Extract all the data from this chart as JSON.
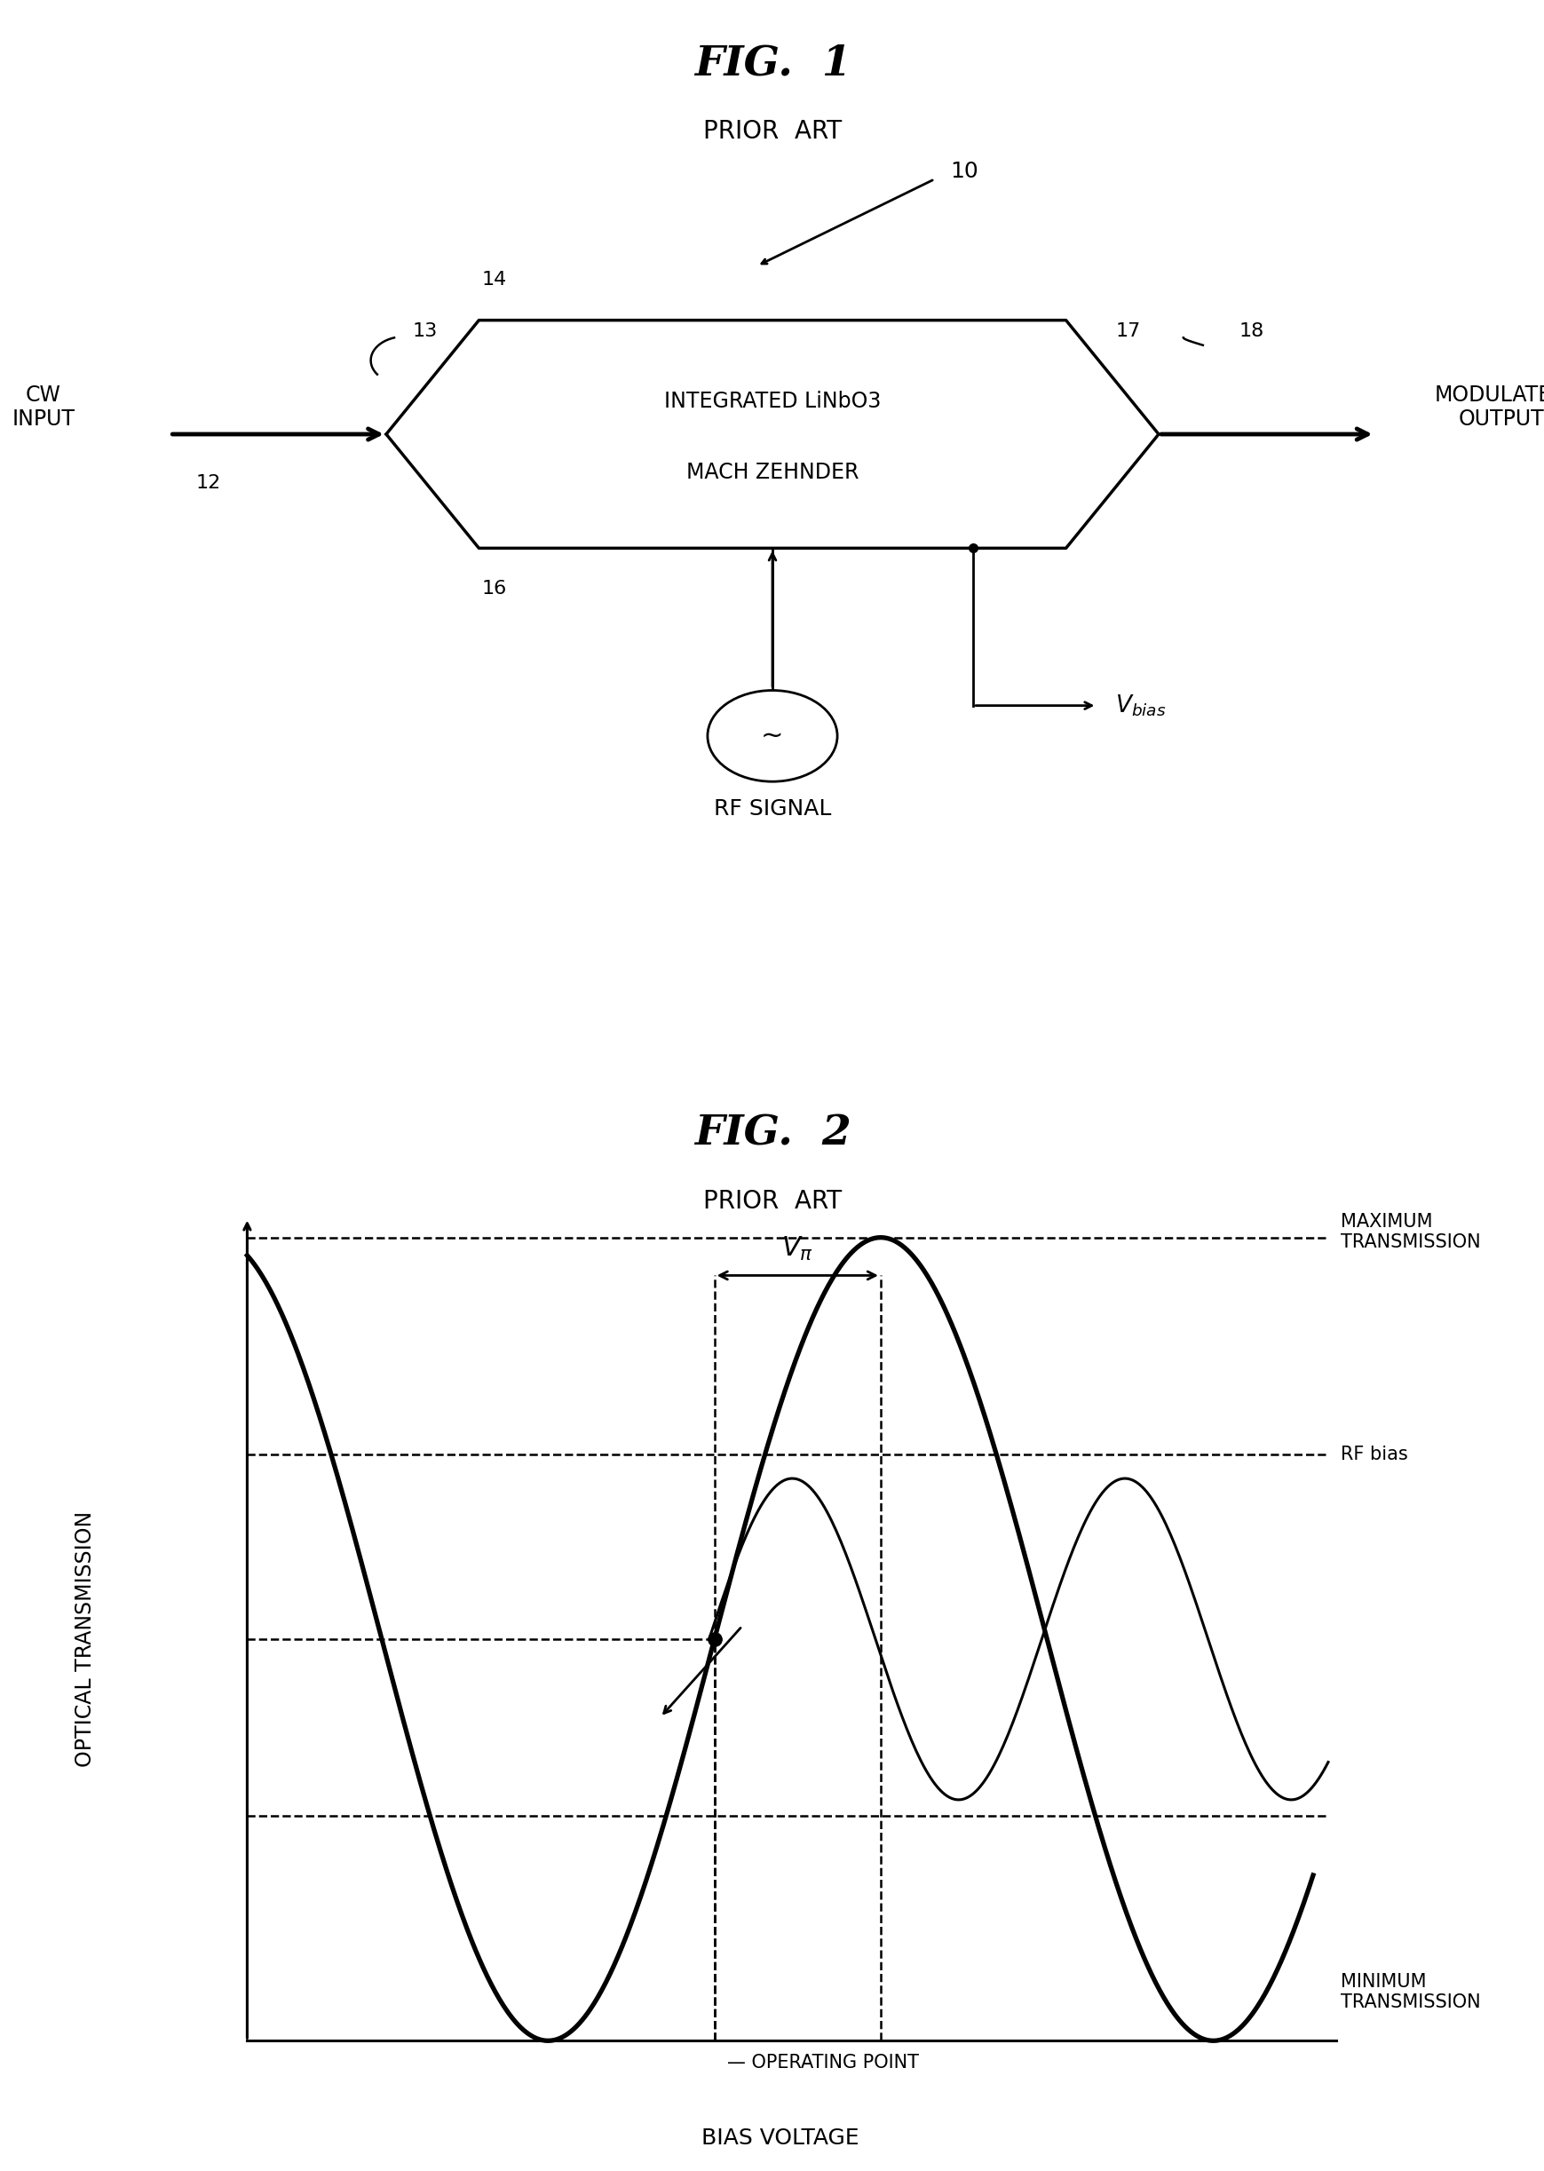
{
  "fig1_title": "FIG.  1",
  "fig1_subtitle": "PRIOR  ART",
  "fig2_title": "FIG.  2",
  "fig2_subtitle": "PRIOR  ART",
  "mzm_label_line1": "INTEGRATED LiNbO3",
  "mzm_label_line2": "MACH ZEHNDER",
  "cw_input_label": "CW\nINPUT",
  "modulated_output_label": "MODULATED\nOUTPUT",
  "rf_signal_label": "RF SIGNAL",
  "label_10": "10",
  "label_12": "12",
  "label_13": "13",
  "label_14": "14",
  "label_16": "16",
  "label_17": "17",
  "label_18": "18",
  "ylabel_fig2": "OPTICAL TRANSMISSION",
  "xlabel_fig2": "BIAS VOLTAGE",
  "max_trans_label": "MAXIMUM\nTRANSMISSION",
  "min_trans_label": "MINIMUM\nTRANSMISSION",
  "op_point_label": "OPERATING POINT",
  "rf_bias_label": "RF bias",
  "bg_color": "#ffffff",
  "line_color": "#000000"
}
